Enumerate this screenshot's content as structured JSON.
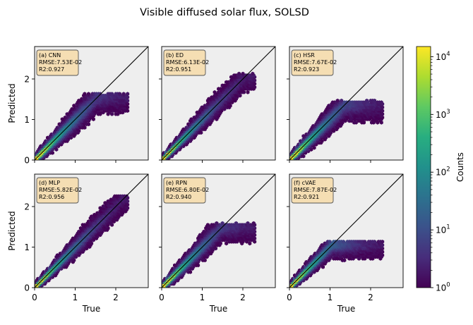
{
  "figure": {
    "title": "Visible diffused solar flux, SOLSD"
  },
  "colorbar": {
    "label": "Counts",
    "scale": "log",
    "range": [
      1,
      15000
    ],
    "colormap": "viridis",
    "ticks": [
      {
        "value": 1,
        "base": "10",
        "exp": "0"
      },
      {
        "value": 10,
        "base": "10",
        "exp": "1"
      },
      {
        "value": 100,
        "base": "10",
        "exp": "2"
      },
      {
        "value": 1000,
        "base": "10",
        "exp": "3"
      },
      {
        "value": 10000,
        "base": "10",
        "exp": "4"
      }
    ]
  },
  "colors": {
    "panel_background": "#eeeeee",
    "annotation_box": "#f5deb3",
    "identity_line": "#000000"
  },
  "chart_data": [
    {
      "type": "hexbin",
      "label": "(a) CNN",
      "rmse": "RMSE:7.53E-02",
      "r2": "R2:0.927",
      "xlabel": "",
      "ylabel": "Predicted",
      "xlim": [
        0,
        2.8
      ],
      "ylim": [
        0,
        2.8
      ],
      "x_ticks": [],
      "y_ticks": [
        "0",
        "1",
        "2"
      ],
      "identity_line": true,
      "spread": 0.3,
      "upper_cap": 1.62,
      "max_true": 2.3
    },
    {
      "type": "hexbin",
      "label": "(b) ED",
      "rmse": "RMSE:6.13E-02",
      "r2": "R2:0.951",
      "xlabel": "",
      "ylabel": "",
      "xlim": [
        0,
        2.8
      ],
      "ylim": [
        0,
        2.8
      ],
      "x_ticks": [],
      "y_ticks": [],
      "identity_line": true,
      "spread": 0.24,
      "upper_cap": 2.1,
      "max_true": 2.3
    },
    {
      "type": "hexbin",
      "label": "(c) HSR",
      "rmse": "RMSE:7.67E-02",
      "r2": "R2:0.923",
      "xlabel": "",
      "ylabel": "",
      "xlim": [
        0,
        2.8
      ],
      "ylim": [
        0,
        2.8
      ],
      "x_ticks": [],
      "y_ticks": [],
      "identity_line": true,
      "spread": 0.3,
      "upper_cap": 1.42,
      "max_true": 2.3
    },
    {
      "type": "hexbin",
      "label": "(d) MLP",
      "rmse": "RMSE:5.82E-02",
      "r2": "R2:0.956",
      "xlabel": "True",
      "ylabel": "Predicted",
      "xlim": [
        0,
        2.8
      ],
      "ylim": [
        0,
        2.8
      ],
      "x_ticks": [
        "0",
        "1",
        "2"
      ],
      "y_ticks": [
        "0",
        "1",
        "2"
      ],
      "identity_line": true,
      "spread": 0.24,
      "upper_cap": 2.25,
      "max_true": 2.3
    },
    {
      "type": "hexbin",
      "label": "(e) RPN",
      "rmse": "RMSE:6.80E-02",
      "r2": "R2:0.940",
      "xlabel": "True",
      "ylabel": "",
      "xlim": [
        0,
        2.8
      ],
      "ylim": [
        0,
        2.8
      ],
      "x_ticks": [
        "0",
        "1",
        "2"
      ],
      "y_ticks": [],
      "identity_line": true,
      "spread": 0.28,
      "upper_cap": 1.55,
      "max_true": 2.3
    },
    {
      "type": "hexbin",
      "label": "(f) cVAE",
      "rmse": "RMSE:7.87E-02",
      "r2": "R2:0.921",
      "xlabel": "True",
      "ylabel": "",
      "xlim": [
        0,
        2.8
      ],
      "ylim": [
        0,
        2.8
      ],
      "x_ticks": [
        "0",
        "1",
        "2"
      ],
      "y_ticks": [],
      "identity_line": true,
      "spread": 0.26,
      "upper_cap": 1.12,
      "max_true": 2.3
    }
  ]
}
